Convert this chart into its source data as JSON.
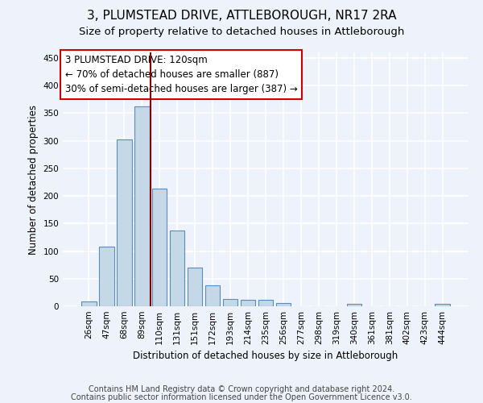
{
  "title": "3, PLUMSTEAD DRIVE, ATTLEBOROUGH, NR17 2RA",
  "subtitle": "Size of property relative to detached houses in Attleborough",
  "xlabel": "Distribution of detached houses by size in Attleborough",
  "ylabel": "Number of detached properties",
  "categories": [
    "26sqm",
    "47sqm",
    "68sqm",
    "89sqm",
    "110sqm",
    "131sqm",
    "151sqm",
    "172sqm",
    "193sqm",
    "214sqm",
    "235sqm",
    "256sqm",
    "277sqm",
    "298sqm",
    "319sqm",
    "340sqm",
    "361sqm",
    "381sqm",
    "402sqm",
    "423sqm",
    "444sqm"
  ],
  "values": [
    9,
    108,
    302,
    362,
    213,
    137,
    70,
    38,
    13,
    11,
    11,
    6,
    0,
    0,
    0,
    4,
    0,
    0,
    0,
    0,
    4
  ],
  "bar_color": "#c5d8e8",
  "bar_edge_color": "#5b8db8",
  "vline_color": "#880000",
  "annotation_line1": "3 PLUMSTEAD DRIVE: 120sqm",
  "annotation_line2": "← 70% of detached houses are smaller (887)",
  "annotation_line3": "30% of semi-detached houses are larger (387) →",
  "annotation_box_color": "#ffffff",
  "annotation_box_edge_color": "#cc0000",
  "ylim": [
    0,
    460
  ],
  "yticks": [
    0,
    50,
    100,
    150,
    200,
    250,
    300,
    350,
    400,
    450
  ],
  "footer1": "Contains HM Land Registry data © Crown copyright and database right 2024.",
  "footer2": "Contains public sector information licensed under the Open Government Licence v3.0.",
  "background_color": "#eef2fa",
  "grid_color": "#ffffff",
  "title_fontsize": 11,
  "subtitle_fontsize": 9.5,
  "axis_label_fontsize": 8.5,
  "tick_fontsize": 7.5,
  "annotation_fontsize": 8.5,
  "footer_fontsize": 7
}
